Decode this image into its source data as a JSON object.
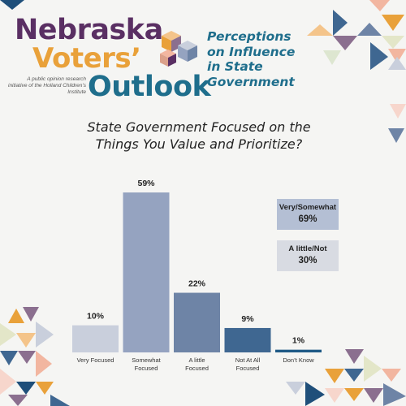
{
  "brand": {
    "line1": "Nebraska",
    "line2": "Voters’",
    "line3": "Outlook",
    "tagline": "A public opinion research initiative of the Holland Children’s Institute"
  },
  "heading": "Perceptions on Influence in State Government",
  "chart_data": {
    "type": "bar",
    "title_line1": "State Government Focused on the",
    "title_line2": "Things You Value and Prioritize?",
    "categories": [
      [
        "Very Focused"
      ],
      [
        "Somewhat",
        "Focused"
      ],
      [
        "A little",
        "Focused"
      ],
      [
        "Not At All",
        "Focused"
      ],
      [
        "Don’t Know"
      ]
    ],
    "values": [
      10,
      59,
      22,
      9,
      1
    ],
    "value_labels": [
      "10%",
      "59%",
      "22%",
      "9%",
      "1%"
    ],
    "colors": [
      "#c9cfdc",
      "#95a3c0",
      "#6e84a6",
      "#3f6791",
      "#1f5a86"
    ],
    "xlabel": "",
    "ylabel": "",
    "ylim": [
      0,
      59
    ],
    "grid": false
  },
  "summary": [
    {
      "label": "Very/Somewhat",
      "value": "69%"
    },
    {
      "label": "A little/Not",
      "value": "30%"
    }
  ]
}
